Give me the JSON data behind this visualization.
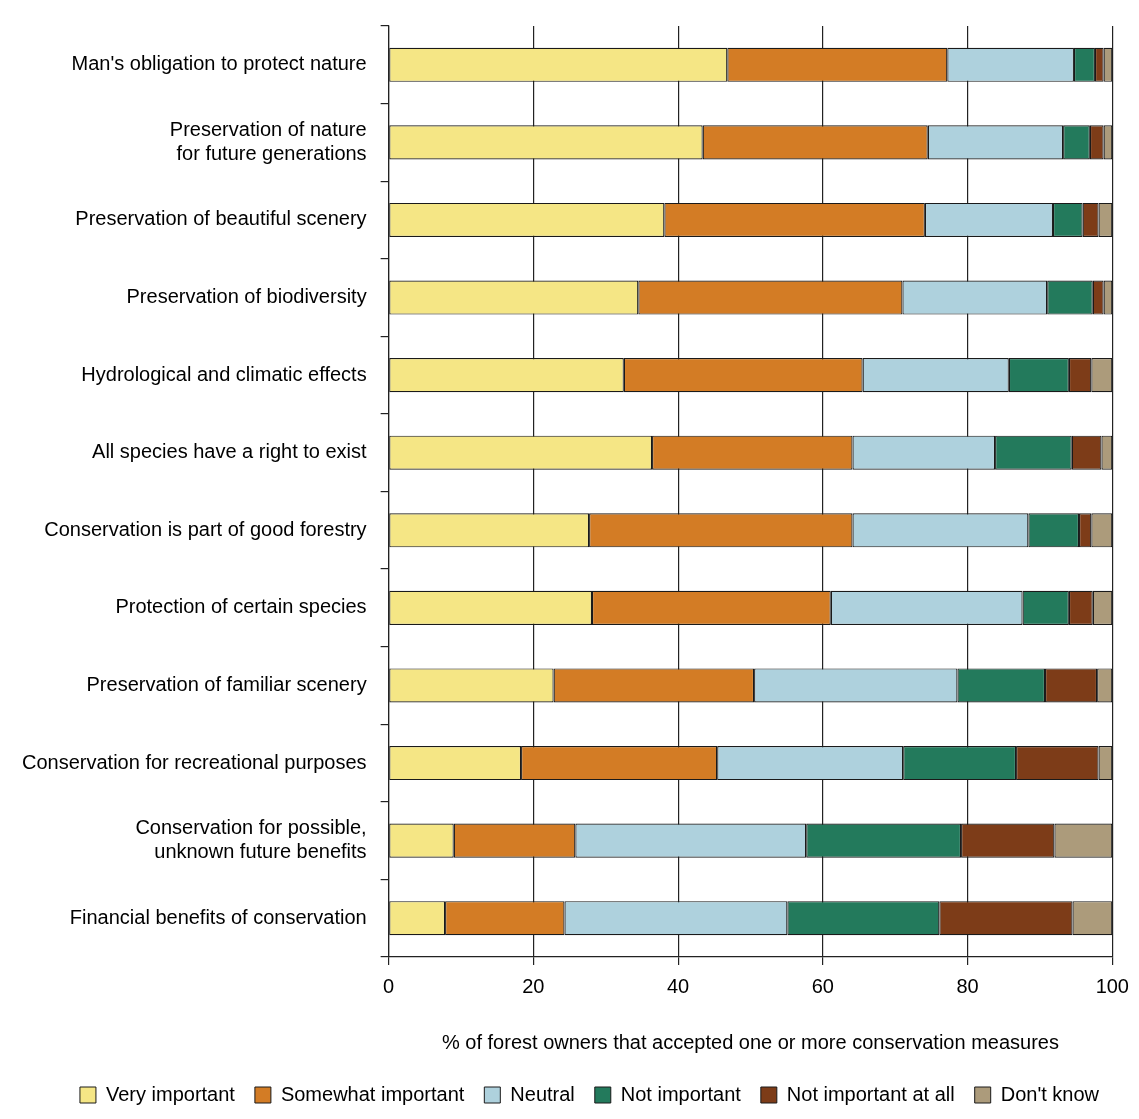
{
  "chart_data": {
    "type": "bar",
    "orientation": "horizontal",
    "stacked": true,
    "xlabel": "% of forest owners that accepted one or more conservation measures",
    "categories": [
      "Man's obligation to protect nature",
      "Preservation of nature for future generations",
      "Preservation of beautiful scenery",
      "Preservation of biodiversity",
      "Hydrological and climatic effects",
      "All species have a right to exist",
      "Conservation is part of good forestry",
      "Protection of certain species",
      "Preservation of familiar scenery",
      "Conservation for recreational purposes",
      "Conservation for possible, unknown future benefits",
      "Financial benefits of conservation"
    ],
    "series": [
      {
        "name": "Very important",
        "color": "#f5e685",
        "values": [
          46.8,
          43.4,
          38.1,
          34.5,
          32.5,
          36.4,
          27.7,
          28.1,
          22.8,
          18.3,
          9.0,
          7.8
        ]
      },
      {
        "name": "Somewhat important",
        "color": "#d37c25",
        "values": [
          30.4,
          31.1,
          36.0,
          36.5,
          33.0,
          27.7,
          36.4,
          33.0,
          27.7,
          27.1,
          16.8,
          16.5
        ]
      },
      {
        "name": "Neutral",
        "color": "#aed1dd",
        "values": [
          17.5,
          18.7,
          17.7,
          20.0,
          20.2,
          19.7,
          24.3,
          26.5,
          28.1,
          25.7,
          31.9,
          30.8
        ]
      },
      {
        "name": "Not important",
        "color": "#237a5c",
        "values": [
          2.9,
          3.7,
          4.1,
          6.3,
          8.3,
          10.6,
          7.0,
          6.4,
          12.1,
          15.6,
          21.4,
          21.0
        ]
      },
      {
        "name": "Not important at all",
        "color": "#7d3c18",
        "values": [
          1.2,
          1.9,
          2.2,
          1.5,
          3.1,
          4.1,
          1.7,
          3.3,
          7.2,
          11.4,
          12.9,
          18.4
        ]
      },
      {
        "name": "Don't know",
        "color": "#ac9b7b",
        "values": [
          1.2,
          1.2,
          1.9,
          1.2,
          2.9,
          1.5,
          2.9,
          2.7,
          2.1,
          1.9,
          8.0,
          5.5
        ]
      }
    ],
    "xlim": [
      0,
      100
    ],
    "xticks": [
      0,
      20,
      40,
      60,
      80,
      100
    ],
    "grid": "x",
    "legend": "bottom"
  }
}
